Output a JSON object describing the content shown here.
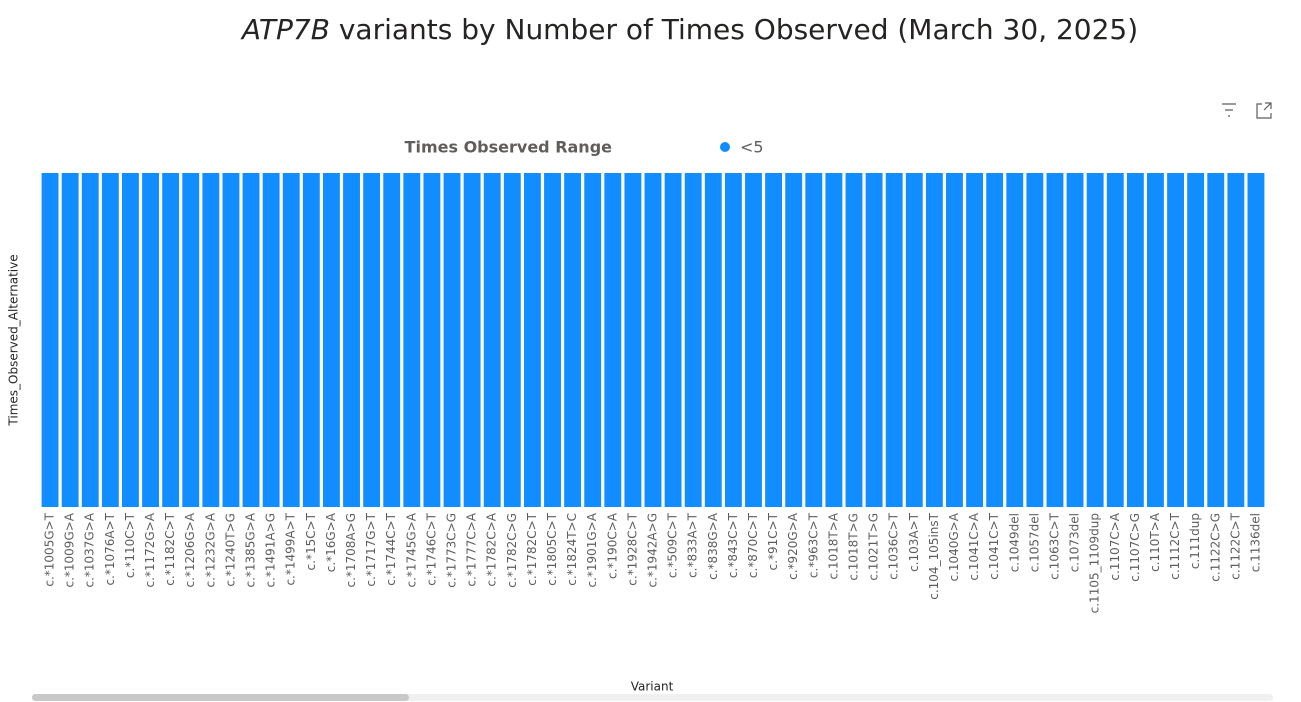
{
  "chart_data": {
    "type": "bar",
    "title_italic": "ATP7B",
    "title": "variants by Number of Times Observed (March 30, 2025)",
    "legend_title": "Times Observed Range",
    "x_label": "Variant",
    "y_label": "Times_Observed_Alternative",
    "categories": [
      "c.*1005G>T",
      "c.*1009G>A",
      "c.*1037G>A",
      "c.*1076A>T",
      "c.*110C>T",
      "c.*1172G>A",
      "c.*1182C>T",
      "c.*1206G>A",
      "c.*1232G>A",
      "c.*1240T>G",
      "c.*1385G>A",
      "c.*1491A>G",
      "c.*1499A>T",
      "c.*15C>T",
      "c.*16G>A",
      "c.*1708A>G",
      "c.*1717G>T",
      "c.*1744C>T",
      "c.*1745G>A",
      "c.*1746C>T",
      "c.*1773C>G",
      "c.*1777C>A",
      "c.*1782C>A",
      "c.*1782C>G",
      "c.*1782C>T",
      "c.*1805C>T",
      "c.*1824T>C",
      "c.*1901G>A",
      "c.*190C>A",
      "c.*1928C>T",
      "c.*1942A>G",
      "c.*509C>T",
      "c.*833A>T",
      "c.*838G>A",
      "c.*843C>T",
      "c.*870C>T",
      "c.*91C>T",
      "c.*920G>A",
      "c.*963C>T",
      "c.1018T>A",
      "c.1018T>G",
      "c.1021T>G",
      "c.1036C>T",
      "c.103A>T",
      "c.104_105insT",
      "c.1040G>A",
      "c.1041C>A",
      "c.1041C>T",
      "c.1049del",
      "c.1057del",
      "c.1063C>T",
      "c.1073del",
      "c.1105_1109dup",
      "c.1107C>A",
      "c.1107C>G",
      "c.110T>A",
      "c.1112C>T",
      "c.111dup",
      "c.1122C>G",
      "c.1122C>T",
      "c.1136del"
    ],
    "series": [
      {
        "name": "<5",
        "color": "#118dff",
        "values": [
          1,
          1,
          1,
          1,
          1,
          1,
          1,
          1,
          1,
          1,
          1,
          1,
          1,
          1,
          1,
          1,
          1,
          1,
          1,
          1,
          1,
          1,
          1,
          1,
          1,
          1,
          1,
          1,
          1,
          1,
          1,
          1,
          1,
          1,
          1,
          1,
          1,
          1,
          1,
          1,
          1,
          1,
          1,
          1,
          1,
          1,
          1,
          1,
          1,
          1,
          1,
          1,
          1,
          1,
          1,
          1,
          1,
          1,
          1,
          1,
          1
        ]
      }
    ]
  }
}
